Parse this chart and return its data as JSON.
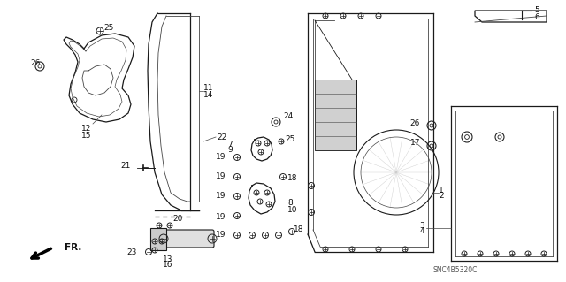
{
  "bg_color": "#ffffff",
  "fig_width": 6.4,
  "fig_height": 3.19,
  "watermark": "SNC4B5320C",
  "fr_label": "FR.",
  "line_color": "#1a1a1a",
  "med_color": "#444444",
  "light_color": "#888888"
}
